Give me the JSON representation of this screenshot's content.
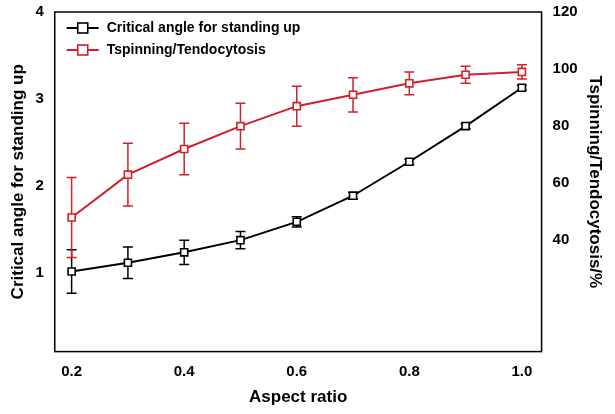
{
  "chart_data": {
    "type": "line",
    "x_label": "Aspect ratio",
    "y_label": "Critical angle for standing up",
    "y2_label": "Tspinning/Tendocytosis/%",
    "x": [
      0.2,
      0.3,
      0.4,
      0.5,
      0.6,
      0.7,
      0.8,
      0.9,
      1.0
    ],
    "xlim": [
      0.17,
      1.035
    ],
    "xticks": [
      0.2,
      0.4,
      0.6,
      0.8,
      {
        "value": 1,
        "label": "1.0"
      }
    ],
    "ylim": [
      0.1,
      4
    ],
    "yticks": [
      1,
      2,
      3,
      4
    ],
    "y2lim": [
      1,
      120
    ],
    "y2ticks": [
      40,
      60,
      80,
      100,
      120
    ],
    "grid": false,
    "legend": "upper left",
    "series": [
      {
        "name": "Critical angle for standing up",
        "color": "#000000",
        "marker": "square",
        "values": [
          1.02,
          1.12,
          1.24,
          1.38,
          1.59,
          1.89,
          2.28,
          2.69,
          3.13
        ],
        "errors": [
          0.25,
          0.18,
          0.14,
          0.1,
          0.06,
          0.04,
          0.03,
          0.03,
          0.03
        ]
      },
      {
        "name": "Tspinning/Tendocytosis",
        "color": "#d0202a",
        "marker": "square",
        "axis": "y2",
        "values": [
          48,
          63,
          72,
          80,
          87,
          91,
          95,
          98,
          99
        ],
        "errors": [
          14,
          11,
          9,
          8,
          7,
          6,
          4,
          3,
          2.5
        ]
      }
    ]
  }
}
